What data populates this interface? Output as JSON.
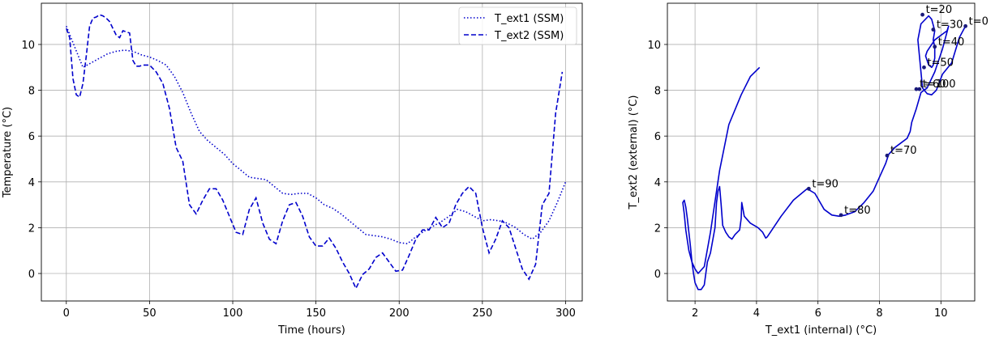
{
  "chart_data": [
    {
      "type": "line",
      "xlabel": "Time (hours)",
      "ylabel": "Temperature ($^\\circ$C)",
      "ylabel_display": "Temperature (°C)",
      "xlim": [
        -15,
        310
      ],
      "ylim": [
        -1.2,
        11.8
      ],
      "xticks": [
        0,
        50,
        100,
        150,
        200,
        250,
        300
      ],
      "yticks": [
        0,
        2,
        4,
        6,
        8,
        10
      ],
      "grid": true,
      "legend": "top-right",
      "series": [
        {
          "name": "T_ext1 (SSM)",
          "style": "dotted",
          "color": "#0000cc",
          "x": [
            0,
            5,
            10,
            15,
            20,
            25,
            30,
            35,
            40,
            45,
            50,
            55,
            60,
            65,
            70,
            75,
            80,
            85,
            90,
            95,
            100,
            105,
            110,
            115,
            120,
            125,
            130,
            135,
            140,
            145,
            150,
            155,
            160,
            165,
            170,
            175,
            180,
            185,
            190,
            195,
            200,
            205,
            210,
            215,
            220,
            225,
            230,
            235,
            240,
            245,
            250,
            255,
            260,
            265,
            270,
            275,
            280,
            285,
            290,
            295,
            300
          ],
          "values": [
            10.8,
            9.9,
            9.0,
            9.2,
            9.4,
            9.6,
            9.7,
            9.75,
            9.7,
            9.55,
            9.45,
            9.3,
            9.1,
            8.6,
            7.9,
            7.0,
            6.2,
            5.8,
            5.5,
            5.2,
            4.8,
            4.5,
            4.2,
            4.15,
            4.1,
            3.8,
            3.5,
            3.45,
            3.5,
            3.5,
            3.3,
            3.0,
            2.85,
            2.6,
            2.3,
            2.0,
            1.7,
            1.65,
            1.6,
            1.5,
            1.35,
            1.3,
            1.6,
            1.85,
            2.05,
            2.25,
            2.5,
            2.8,
            2.7,
            2.5,
            2.3,
            2.35,
            2.3,
            2.2,
            2.0,
            1.7,
            1.5,
            1.8,
            2.3,
            3.1,
            4.0
          ]
        },
        {
          "name": "T_ext2 (SSM)",
          "style": "dashed",
          "color": "#0000cc",
          "x": [
            0,
            2,
            4,
            6,
            8,
            10,
            12,
            14,
            16,
            18,
            20,
            22,
            24,
            26,
            28,
            30,
            32,
            34,
            36,
            38,
            40,
            42,
            44,
            46,
            48,
            50,
            54,
            58,
            62,
            66,
            70,
            74,
            78,
            82,
            86,
            90,
            94,
            98,
            102,
            106,
            110,
            114,
            118,
            122,
            126,
            130,
            134,
            138,
            142,
            146,
            150,
            154,
            158,
            162,
            166,
            170,
            174,
            178,
            182,
            186,
            190,
            194,
            198,
            202,
            206,
            210,
            214,
            218,
            222,
            226,
            230,
            234,
            238,
            242,
            246,
            250,
            254,
            258,
            262,
            266,
            270,
            274,
            278,
            282,
            286,
            290,
            294,
            298
          ],
          "values": [
            10.7,
            10.3,
            8.5,
            7.8,
            7.7,
            8.3,
            9.5,
            10.8,
            11.15,
            11.2,
            11.3,
            11.25,
            11.15,
            11.0,
            10.7,
            10.4,
            10.3,
            10.6,
            10.55,
            10.5,
            9.3,
            9.05,
            9.05,
            9.1,
            9.1,
            9.1,
            8.8,
            8.3,
            7.2,
            5.5,
            4.9,
            3.0,
            2.6,
            3.2,
            3.7,
            3.7,
            3.2,
            2.5,
            1.8,
            1.7,
            2.8,
            3.3,
            2.2,
            1.5,
            1.3,
            2.3,
            3.0,
            3.1,
            2.5,
            1.6,
            1.2,
            1.2,
            1.55,
            1.1,
            0.5,
            0.0,
            -0.65,
            -0.05,
            0.2,
            0.7,
            0.9,
            0.5,
            0.1,
            0.15,
            0.8,
            1.5,
            1.9,
            1.9,
            2.45,
            2.0,
            2.2,
            3.0,
            3.5,
            3.8,
            3.5,
            2.0,
            0.9,
            1.5,
            2.3,
            2.0,
            1.1,
            0.2,
            -0.25,
            0.4,
            3.0,
            3.5,
            7.0,
            8.8
          ]
        }
      ]
    },
    {
      "type": "line",
      "xlabel": "T_ext1 (internal) ($^\\circ$C)",
      "xlabel_display": "T_ext1 (internal) (°C)",
      "ylabel": "T_ext2 (external) ($^\\circ$C)",
      "ylabel_display": "T_ext2 (external) (°C)",
      "xlim": [
        1.1,
        11.1
      ],
      "ylim": [
        -1.2,
        11.8
      ],
      "xticks": [
        2,
        4,
        6,
        8,
        10
      ],
      "yticks": [
        0,
        2,
        4,
        6,
        8,
        10
      ],
      "grid": true,
      "series": [
        {
          "name": "",
          "color": "#0000cc",
          "x": [
            10.8,
            10.6,
            10.35,
            10.05,
            9.85,
            9.7,
            9.55,
            9.4,
            9.35,
            9.3,
            9.25,
            9.35,
            9.6,
            9.7,
            9.8,
            9.75,
            9.8,
            9.8,
            9.75,
            9.7,
            9.6,
            9.5,
            9.55,
            9.65,
            9.8,
            10.0,
            10.2,
            10.25,
            10.05,
            9.8,
            9.55,
            9.35,
            9.2,
            9.05,
            9.0,
            8.9,
            8.7,
            8.5,
            8.3,
            8.2,
            8.0,
            7.8,
            7.5,
            7.2,
            6.9,
            6.7,
            6.45,
            6.2,
            5.9,
            5.65,
            5.2,
            4.8,
            4.45,
            4.35,
            4.3,
            4.2,
            4.05,
            3.8,
            3.6,
            3.52,
            3.5,
            3.45,
            3.3,
            3.2,
            3.1,
            3.0,
            2.9,
            2.85,
            2.8,
            2.75,
            2.7,
            2.65,
            2.5,
            2.4,
            2.35,
            2.3,
            2.2,
            2.1,
            2.0,
            1.95,
            1.9,
            1.85,
            1.8,
            1.75,
            1.7,
            1.65,
            1.6,
            1.65,
            1.7,
            1.8,
            1.9,
            2.0,
            2.1,
            2.3,
            2.5,
            2.8,
            3.1,
            3.5,
            3.8,
            4.1
          ],
          "y": [
            10.8,
            10.3,
            9.2,
            8.7,
            8.0,
            7.8,
            7.85,
            8.1,
            8.8,
            9.5,
            10.2,
            10.9,
            11.25,
            11.1,
            10.6,
            10.2,
            9.9,
            9.4,
            9.1,
            9.0,
            9.1,
            9.5,
            9.7,
            9.9,
            10.2,
            10.4,
            10.6,
            10.8,
            9.8,
            8.8,
            8.1,
            7.9,
            7.2,
            6.6,
            6.2,
            5.9,
            5.7,
            5.5,
            5.2,
            4.8,
            4.2,
            3.6,
            3.1,
            2.7,
            2.55,
            2.5,
            2.55,
            2.8,
            3.5,
            3.7,
            3.2,
            2.5,
            1.8,
            1.6,
            1.55,
            1.8,
            2.0,
            2.2,
            2.5,
            3.1,
            2.4,
            1.9,
            1.7,
            1.5,
            1.6,
            1.8,
            2.1,
            3.0,
            3.8,
            3.6,
            3.1,
            2.0,
            0.9,
            0.5,
            0.0,
            -0.5,
            -0.7,
            -0.7,
            -0.4,
            0.0,
            0.5,
            1.2,
            1.8,
            2.4,
            2.9,
            3.2,
            3.1,
            2.6,
            1.9,
            1.0,
            0.5,
            0.2,
            0.0,
            0.3,
            1.8,
            4.5,
            6.5,
            7.8,
            8.6,
            9.0
          ]
        }
      ],
      "annotations": [
        {
          "text": "t=0",
          "x": 10.8,
          "y": 10.8
        },
        {
          "text": "t=20",
          "x": 9.4,
          "y": 11.3
        },
        {
          "text": "t=30",
          "x": 9.75,
          "y": 10.65
        },
        {
          "text": "t=40",
          "x": 9.8,
          "y": 9.9
        },
        {
          "text": "t=50",
          "x": 9.45,
          "y": 9.0
        },
        {
          "text": "t=60",
          "x": 9.2,
          "y": 8.05
        },
        {
          "text": "t=70",
          "x": 8.25,
          "y": 5.15
        },
        {
          "text": "t=80",
          "x": 6.75,
          "y": 2.55
        },
        {
          "text": "t=90",
          "x": 5.7,
          "y": 3.7
        },
        {
          "text": "t=100",
          "x": 9.3,
          "y": 8.05
        }
      ]
    }
  ]
}
